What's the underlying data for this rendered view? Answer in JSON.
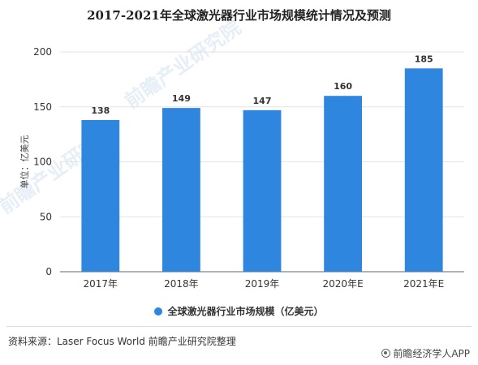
{
  "title": "2017-2021年全球激光器行业市场规模统计情况及预测",
  "chart_data": {
    "type": "bar",
    "categories": [
      "2017年",
      "2018年",
      "2019年",
      "2020年E",
      "2021年E"
    ],
    "series": [
      {
        "name": "全球激光器行业市场规模（亿美元）",
        "values": [
          138,
          149,
          147,
          160,
          185
        ]
      }
    ],
    "title": "2017-2021年全球激光器行业市场规模统计情况及预测",
    "xlabel": "",
    "ylabel": "单位：亿美元",
    "ylim": [
      0,
      200
    ],
    "yticks": [
      0,
      50,
      100,
      150,
      200
    ],
    "grid": true,
    "legend_position": "bottom"
  },
  "colors": {
    "bar": "#2E86DE",
    "grid": "#e3e3e3",
    "axis": "#666666"
  },
  "watermark": {
    "line1": "前瞻产业研究院",
    "line2": "前瞻产业研究院"
  },
  "footer": {
    "source": "资料来源：Laser Focus World 前瞻产业研究院整理",
    "brand": "前瞻经济学人APP",
    "brand_icon": "at-icon"
  }
}
